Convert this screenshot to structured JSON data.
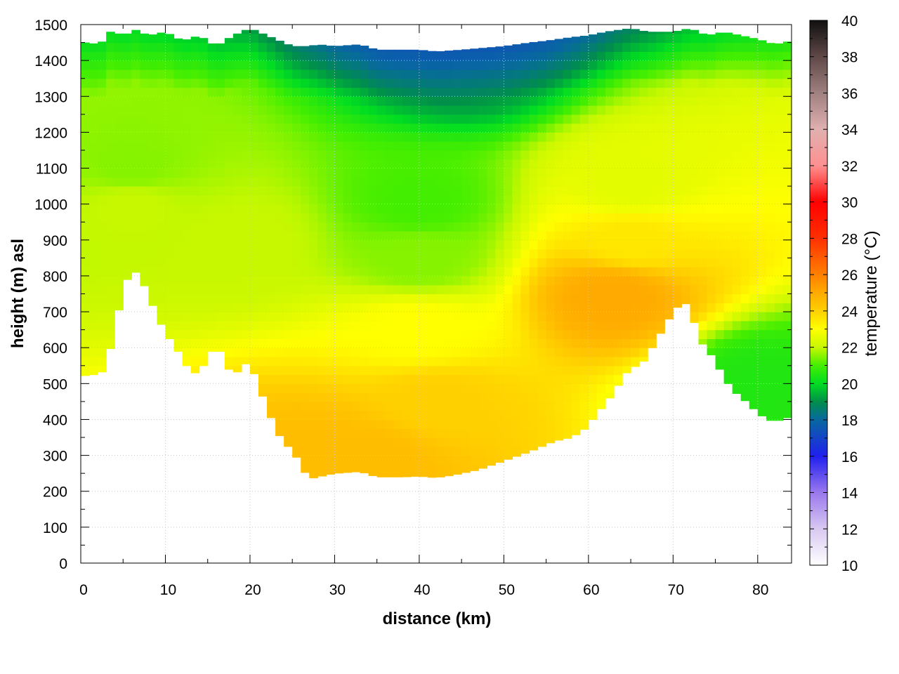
{
  "chart_data": {
    "type": "heatmap",
    "title": "",
    "xlabel": "distance (km)",
    "ylabel": "height (m) asl",
    "colorbar_label": "temperature (°C)",
    "xlim": [
      0,
      84
    ],
    "ylim": [
      0,
      1500
    ],
    "clim": [
      10,
      40
    ],
    "grid": true,
    "x_ticks": [
      0,
      10,
      20,
      30,
      40,
      50,
      60,
      70,
      80
    ],
    "y_ticks": [
      0,
      100,
      200,
      300,
      400,
      500,
      600,
      700,
      800,
      900,
      1000,
      1100,
      1200,
      1300,
      1400,
      1500
    ],
    "colorbar_ticks": [
      10,
      12,
      14,
      16,
      18,
      20,
      22,
      24,
      26,
      28,
      30,
      32,
      34,
      36,
      38,
      40
    ],
    "colormap": [
      {
        "t": 10,
        "color": "#ffffff"
      },
      {
        "t": 12,
        "color": "#d8c8f0"
      },
      {
        "t": 14,
        "color": "#9a78ee"
      },
      {
        "t": 16,
        "color": "#2020ee"
      },
      {
        "t": 18,
        "color": "#0868a0"
      },
      {
        "t": 19,
        "color": "#008f4a"
      },
      {
        "t": 20,
        "color": "#00dd22"
      },
      {
        "t": 21,
        "color": "#44ee00"
      },
      {
        "t": 22,
        "color": "#c8f800"
      },
      {
        "t": 23,
        "color": "#ffff00"
      },
      {
        "t": 24,
        "color": "#ffd000"
      },
      {
        "t": 25,
        "color": "#ffaa00"
      },
      {
        "t": 26,
        "color": "#ff8000"
      },
      {
        "t": 28,
        "color": "#ff3000"
      },
      {
        "t": 30,
        "color": "#ff0000"
      },
      {
        "t": 32,
        "color": "#ff9090"
      },
      {
        "t": 34,
        "color": "#e0b0b0"
      },
      {
        "t": 36,
        "color": "#a08080"
      },
      {
        "t": 38,
        "color": "#604848"
      },
      {
        "t": 40,
        "color": "#101010"
      }
    ],
    "terrain": [
      [
        0,
        515
      ],
      [
        1,
        530
      ],
      [
        2,
        520
      ],
      [
        3,
        545
      ],
      [
        4,
        650
      ],
      [
        5,
        760
      ],
      [
        6,
        820
      ],
      [
        7,
        800
      ],
      [
        8,
        745
      ],
      [
        9,
        690
      ],
      [
        10,
        640
      ],
      [
        11,
        610
      ],
      [
        12,
        570
      ],
      [
        13,
        530
      ],
      [
        14,
        530
      ],
      [
        15,
        570
      ],
      [
        16,
        610
      ],
      [
        17,
        570
      ],
      [
        18,
        510
      ],
      [
        19,
        555
      ],
      [
        20,
        555
      ],
      [
        21,
        500
      ],
      [
        22,
        430
      ],
      [
        23,
        380
      ],
      [
        24,
        330
      ],
      [
        25,
        320
      ],
      [
        26,
        270
      ],
      [
        27,
        235
      ],
      [
        28,
        240
      ],
      [
        30,
        250
      ],
      [
        33,
        255
      ],
      [
        35,
        240
      ],
      [
        38,
        240
      ],
      [
        40,
        242
      ],
      [
        42,
        238
      ],
      [
        44,
        245
      ],
      [
        47,
        260
      ],
      [
        50,
        285
      ],
      [
        53,
        310
      ],
      [
        56,
        340
      ],
      [
        58,
        350
      ],
      [
        60,
        380
      ],
      [
        61,
        420
      ],
      [
        62,
        440
      ],
      [
        63,
        480
      ],
      [
        64,
        510
      ],
      [
        65,
        550
      ],
      [
        66,
        545
      ],
      [
        67,
        580
      ],
      [
        68,
        620
      ],
      [
        69,
        660
      ],
      [
        70,
        700
      ],
      [
        71,
        725
      ],
      [
        72,
        720
      ],
      [
        73,
        620
      ],
      [
        74,
        600
      ],
      [
        75,
        560
      ],
      [
        76,
        520
      ],
      [
        77,
        480
      ],
      [
        78,
        465
      ],
      [
        79,
        440
      ],
      [
        80,
        420
      ],
      [
        81,
        400
      ],
      [
        82,
        395
      ],
      [
        83,
        400
      ],
      [
        84,
        410
      ]
    ],
    "top_surface": [
      [
        0,
        1440
      ],
      [
        1,
        1460
      ],
      [
        2,
        1435
      ],
      [
        3,
        1470
      ],
      [
        4,
        1490
      ],
      [
        5,
        1460
      ],
      [
        6,
        1490
      ],
      [
        8,
        1470
      ],
      [
        10,
        1480
      ],
      [
        12,
        1455
      ],
      [
        14,
        1470
      ],
      [
        16,
        1440
      ],
      [
        18,
        1470
      ],
      [
        20,
        1490
      ],
      [
        22,
        1470
      ],
      [
        25,
        1440
      ],
      [
        27,
        1440
      ],
      [
        28,
        1445
      ],
      [
        30,
        1440
      ],
      [
        33,
        1445
      ],
      [
        35,
        1430
      ],
      [
        40,
        1430
      ],
      [
        42,
        1425
      ],
      [
        45,
        1430
      ],
      [
        50,
        1440
      ],
      [
        53,
        1450
      ],
      [
        55,
        1455
      ],
      [
        58,
        1465
      ],
      [
        60,
        1470
      ],
      [
        62,
        1480
      ],
      [
        65,
        1490
      ],
      [
        67,
        1480
      ],
      [
        70,
        1480
      ],
      [
        72,
        1490
      ],
      [
        74,
        1470
      ],
      [
        76,
        1480
      ],
      [
        78,
        1470
      ],
      [
        80,
        1460
      ],
      [
        82,
        1445
      ],
      [
        84,
        1455
      ]
    ],
    "temperature_points": [
      {
        "x": 6,
        "z": 1000,
        "t": 22
      },
      {
        "x": 6,
        "z": 1100,
        "t": 21.5
      },
      {
        "x": 19,
        "z": 900,
        "t": 22
      },
      {
        "x": 28,
        "z": 300,
        "t": 24.5
      },
      {
        "x": 35,
        "z": 290,
        "t": 24.5
      },
      {
        "x": 42,
        "z": 450,
        "t": 24
      },
      {
        "x": 40,
        "z": 650,
        "t": 23
      },
      {
        "x": 40,
        "z": 850,
        "t": 21.5
      },
      {
        "x": 40,
        "z": 1000,
        "t": 21
      },
      {
        "x": 63,
        "z": 750,
        "t": 25
      },
      {
        "x": 65,
        "z": 900,
        "t": 23.5
      },
      {
        "x": 65,
        "z": 1050,
        "t": 22.5
      },
      {
        "x": 80,
        "z": 500,
        "t": 20.5
      },
      {
        "x": 45,
        "z": 1400,
        "t": 19
      }
    ]
  }
}
